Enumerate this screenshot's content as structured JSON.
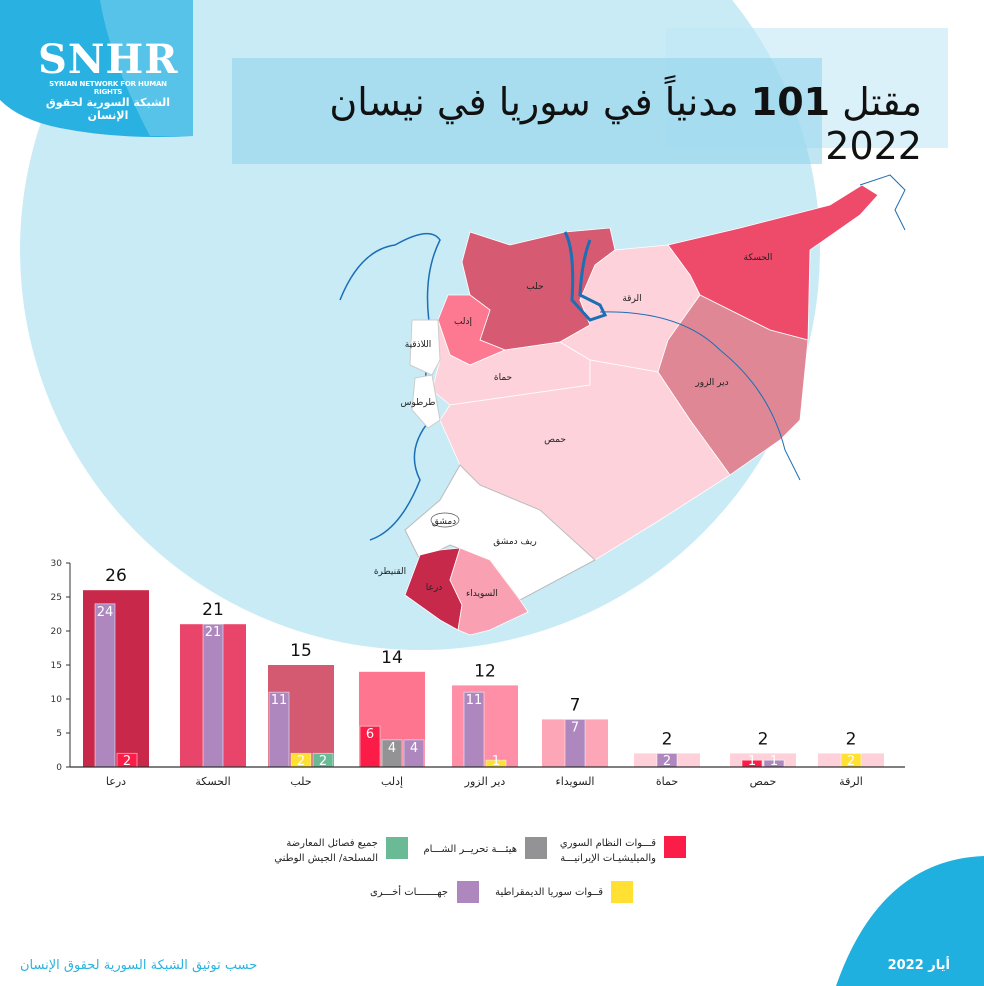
{
  "logo": {
    "abbr": "SNHR",
    "english": "SYRIAN NETWORK FOR HUMAN RIGHTS",
    "arabic": "الشبكة السورية لحقوق الإنسان"
  },
  "title": {
    "before": "مقتل ",
    "number": "101",
    "after": " مدنياً في سوريا في نيسان 2022"
  },
  "map": {
    "labels": {
      "hasakah": "الحسكة",
      "aleppo": "حلب",
      "raqqa": "الرقة",
      "idlib": "إدلب",
      "latakia": "اللاذقية",
      "hama": "حماة",
      "tartus": "طرطوس",
      "deir": "دير الزور",
      "homs": "حمص",
      "damascus": "دمشق",
      "rif": "ريف دمشق",
      "quneitra": "القنيطرة",
      "daraa": "درعا",
      "suwayda": "السويداء"
    },
    "colors": {
      "hasakah": "#ee4a6a",
      "aleppo": "#d65a72",
      "idlib": "#fd7891",
      "deir": "#e08795",
      "raqqa": "#fdd2db",
      "hama": "#fdd2db",
      "homs": "#fdd2db",
      "suwayda": "#f9a1b3",
      "daraa": "#c7294a",
      "white": "#ffffff"
    }
  },
  "legend": [
    {
      "key": "regime",
      "label1": "قـــوات النظام السوري",
      "label2": "والميليشيـات الإيرانيـــة",
      "color": "#fb1c48"
    },
    {
      "key": "hts",
      "label1": "هيئـــة تحريــر الشـــام",
      "label2": "",
      "color": "#939395"
    },
    {
      "key": "opposition",
      "label1": "جميع فصائل المعارضة",
      "label2": "المسلحة/ الجيش الوطني",
      "color": "#6aba96"
    },
    {
      "key": "sdf",
      "label1": "قــوات سوريا الديمقراطية",
      "label2": "",
      "color": "#ffe033"
    },
    {
      "key": "other",
      "label1": "جهـــــــات أخـــرى",
      "label2": "",
      "color": "#ae87bf"
    }
  ],
  "chart_data": {
    "type": "bar",
    "ylim": [
      0,
      30
    ],
    "yticks": [
      "0",
      "5",
      "10",
      "15",
      "20",
      "25",
      "30"
    ],
    "categories": [
      "درعا",
      "الحسكة",
      "حلب",
      "إدلب",
      "دير الزور",
      "السويداء",
      "حماة",
      "حمص",
      "الرقة"
    ],
    "totals": [
      26,
      21,
      15,
      14,
      12,
      7,
      2,
      2,
      2
    ],
    "total_colors": [
      "#c8294a",
      "#e9456a",
      "#d45a72",
      "#fe7590",
      "#fe8fa6",
      "#fda6b8",
      "#fdd0da",
      "#fdd0da",
      "#fdd0da"
    ],
    "breakdown": [
      [
        {
          "key": "other",
          "value": 24
        },
        {
          "key": "regime",
          "value": 2
        }
      ],
      [
        {
          "key": "other",
          "value": 21
        }
      ],
      [
        {
          "key": "other",
          "value": 11
        },
        {
          "key": "sdf",
          "value": 2
        },
        {
          "key": "opposition",
          "value": 2
        }
      ],
      [
        {
          "key": "regime",
          "value": 6
        },
        {
          "key": "hts",
          "value": 4
        },
        {
          "key": "other",
          "value": 4
        }
      ],
      [
        {
          "key": "other",
          "value": 11
        },
        {
          "key": "sdf",
          "value": 1
        }
      ],
      [
        {
          "key": "other",
          "value": 7
        }
      ],
      [
        {
          "key": "other",
          "value": 2
        }
      ],
      [
        {
          "key": "regime",
          "value": 1
        },
        {
          "key": "other",
          "value": 1
        }
      ],
      [
        {
          "key": "sdf",
          "value": 2
        }
      ]
    ]
  },
  "footer": {
    "source": "حسب توثيق الشبكة السورية لحقوق الإنسان",
    "date": "أيار 2022"
  }
}
